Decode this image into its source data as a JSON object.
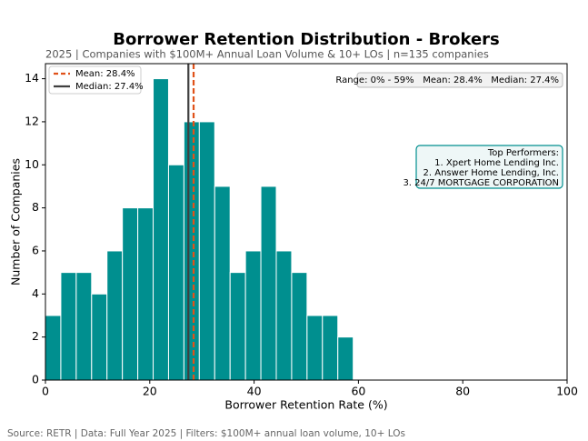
{
  "chart_data": {
    "type": "histogram",
    "title": "Borrower Retention Distribution - Brokers",
    "subtitle": "2025 | Companies with $100M+ Annual Loan Volume & 10+ LOs | n=135 companies",
    "x_label": "Borrower Retention Rate (%)",
    "y_label": "Number of Companies",
    "bins": [
      0,
      2.95,
      5.9,
      8.85,
      11.8,
      14.75,
      17.7,
      20.65,
      23.6,
      26.55,
      29.5,
      32.45,
      35.4,
      38.35,
      41.3,
      44.25,
      47.2,
      50.15,
      53.1,
      56.05,
      59
    ],
    "values": [
      3,
      5,
      5,
      4,
      6,
      8,
      8,
      14,
      10,
      12,
      12,
      9,
      5,
      6,
      9,
      6,
      5,
      3,
      3,
      2
    ],
    "color": "#008f8f",
    "xlim": [
      0,
      100
    ],
    "xticks": [
      0,
      20,
      40,
      60,
      80,
      100
    ],
    "ylim": [
      0,
      14.7
    ],
    "yticks": [
      0,
      2,
      4,
      6,
      8,
      10,
      12,
      14
    ],
    "vlines": [
      {
        "name": "Mean: 28.4%",
        "value": 28.4,
        "color": "#e0521a",
        "dash": true
      },
      {
        "name": "Median: 27.4%",
        "value": 27.4,
        "color": "#404040",
        "dash": false
      }
    ],
    "legend_position": "upper left",
    "annotations": [
      "Range: 0% - 59%   Mean: 28.4%   Median: 27.4%"
    ],
    "top_performers": [
      "Top Performers:",
      "1. Xpert Home Lending Inc.",
      "2. Answer Home Lending, Inc.",
      "3. 24/7 MORTGAGE CORPORATION"
    ],
    "footer": "Source: RETR | Data: Full Year 2025 | Filters: $100M+ annual loan volume, 10+ LOs"
  }
}
